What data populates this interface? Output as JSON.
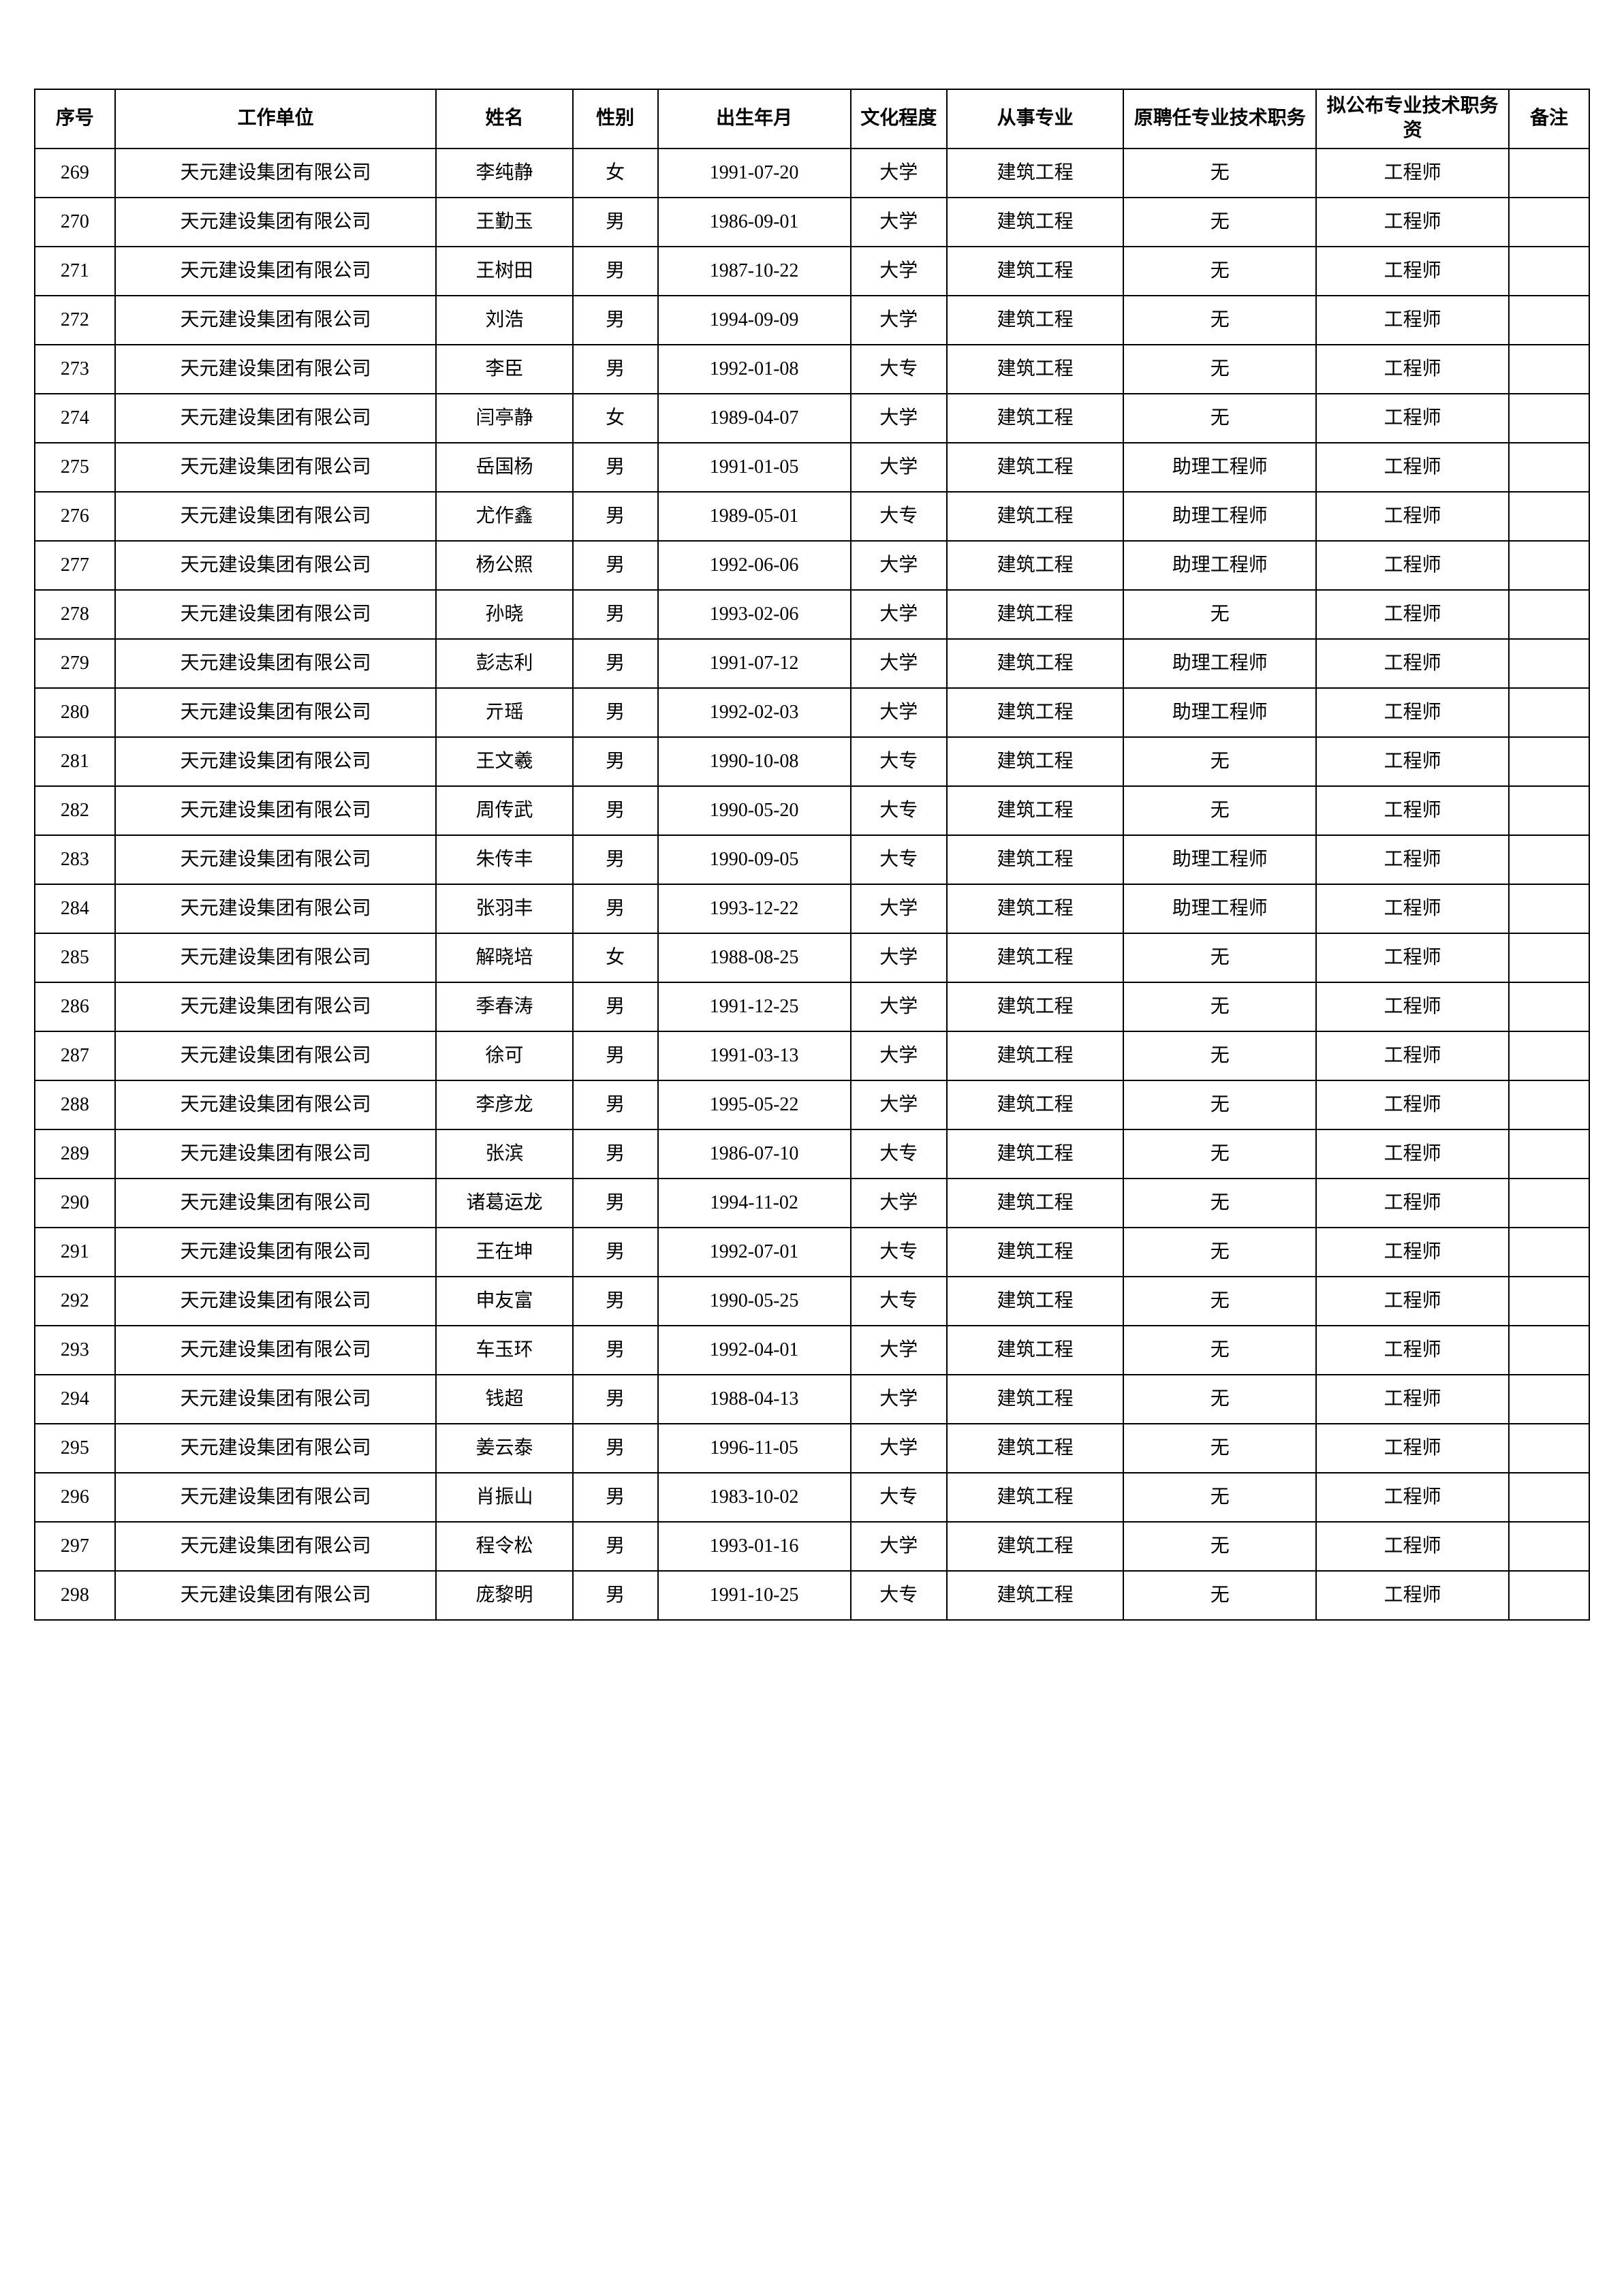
{
  "table": {
    "columns": [
      "序号",
      "工作单位",
      "姓名",
      "性别",
      "出生年月",
      "文化程度",
      "从事专业",
      "原聘任专业技术职务",
      "拟公布专业技术职务资",
      "备注"
    ],
    "rows": [
      [
        "269",
        "天元建设集团有限公司",
        "李纯静",
        "女",
        "1991-07-20",
        "大学",
        "建筑工程",
        "无",
        "工程师",
        ""
      ],
      [
        "270",
        "天元建设集团有限公司",
        "王勤玉",
        "男",
        "1986-09-01",
        "大学",
        "建筑工程",
        "无",
        "工程师",
        ""
      ],
      [
        "271",
        "天元建设集团有限公司",
        "王树田",
        "男",
        "1987-10-22",
        "大学",
        "建筑工程",
        "无",
        "工程师",
        ""
      ],
      [
        "272",
        "天元建设集团有限公司",
        "刘浩",
        "男",
        "1994-09-09",
        "大学",
        "建筑工程",
        "无",
        "工程师",
        ""
      ],
      [
        "273",
        "天元建设集团有限公司",
        "李臣",
        "男",
        "1992-01-08",
        "大专",
        "建筑工程",
        "无",
        "工程师",
        ""
      ],
      [
        "274",
        "天元建设集团有限公司",
        "闫亭静",
        "女",
        "1989-04-07",
        "大学",
        "建筑工程",
        "无",
        "工程师",
        ""
      ],
      [
        "275",
        "天元建设集团有限公司",
        "岳国杨",
        "男",
        "1991-01-05",
        "大学",
        "建筑工程",
        "助理工程师",
        "工程师",
        ""
      ],
      [
        "276",
        "天元建设集团有限公司",
        "尤作鑫",
        "男",
        "1989-05-01",
        "大专",
        "建筑工程",
        "助理工程师",
        "工程师",
        ""
      ],
      [
        "277",
        "天元建设集团有限公司",
        "杨公照",
        "男",
        "1992-06-06",
        "大学",
        "建筑工程",
        "助理工程师",
        "工程师",
        ""
      ],
      [
        "278",
        "天元建设集团有限公司",
        "孙晓",
        "男",
        "1993-02-06",
        "大学",
        "建筑工程",
        "无",
        "工程师",
        ""
      ],
      [
        "279",
        "天元建设集团有限公司",
        "彭志利",
        "男",
        "1991-07-12",
        "大学",
        "建筑工程",
        "助理工程师",
        "工程师",
        ""
      ],
      [
        "280",
        "天元建设集团有限公司",
        "亓瑶",
        "男",
        "1992-02-03",
        "大学",
        "建筑工程",
        "助理工程师",
        "工程师",
        ""
      ],
      [
        "281",
        "天元建设集团有限公司",
        "王文羲",
        "男",
        "1990-10-08",
        "大专",
        "建筑工程",
        "无",
        "工程师",
        ""
      ],
      [
        "282",
        "天元建设集团有限公司",
        "周传武",
        "男",
        "1990-05-20",
        "大专",
        "建筑工程",
        "无",
        "工程师",
        ""
      ],
      [
        "283",
        "天元建设集团有限公司",
        "朱传丰",
        "男",
        "1990-09-05",
        "大专",
        "建筑工程",
        "助理工程师",
        "工程师",
        ""
      ],
      [
        "284",
        "天元建设集团有限公司",
        "张羽丰",
        "男",
        "1993-12-22",
        "大学",
        "建筑工程",
        "助理工程师",
        "工程师",
        ""
      ],
      [
        "285",
        "天元建设集团有限公司",
        "解晓培",
        "女",
        "1988-08-25",
        "大学",
        "建筑工程",
        "无",
        "工程师",
        ""
      ],
      [
        "286",
        "天元建设集团有限公司",
        "季春涛",
        "男",
        "1991-12-25",
        "大学",
        "建筑工程",
        "无",
        "工程师",
        ""
      ],
      [
        "287",
        "天元建设集团有限公司",
        "徐可",
        "男",
        "1991-03-13",
        "大学",
        "建筑工程",
        "无",
        "工程师",
        ""
      ],
      [
        "288",
        "天元建设集团有限公司",
        "李彦龙",
        "男",
        "1995-05-22",
        "大学",
        "建筑工程",
        "无",
        "工程师",
        ""
      ],
      [
        "289",
        "天元建设集团有限公司",
        "张滨",
        "男",
        "1986-07-10",
        "大专",
        "建筑工程",
        "无",
        "工程师",
        ""
      ],
      [
        "290",
        "天元建设集团有限公司",
        "诸葛运龙",
        "男",
        "1994-11-02",
        "大学",
        "建筑工程",
        "无",
        "工程师",
        ""
      ],
      [
        "291",
        "天元建设集团有限公司",
        "王在坤",
        "男",
        "1992-07-01",
        "大专",
        "建筑工程",
        "无",
        "工程师",
        ""
      ],
      [
        "292",
        "天元建设集团有限公司",
        "申友富",
        "男",
        "1990-05-25",
        "大专",
        "建筑工程",
        "无",
        "工程师",
        ""
      ],
      [
        "293",
        "天元建设集团有限公司",
        "车玉环",
        "男",
        "1992-04-01",
        "大学",
        "建筑工程",
        "无",
        "工程师",
        ""
      ],
      [
        "294",
        "天元建设集团有限公司",
        "钱超",
        "男",
        "1988-04-13",
        "大学",
        "建筑工程",
        "无",
        "工程师",
        ""
      ],
      [
        "295",
        "天元建设集团有限公司",
        "姜云泰",
        "男",
        "1996-11-05",
        "大学",
        "建筑工程",
        "无",
        "工程师",
        ""
      ],
      [
        "296",
        "天元建设集团有限公司",
        "肖振山",
        "男",
        "1983-10-02",
        "大专",
        "建筑工程",
        "无",
        "工程师",
        ""
      ],
      [
        "297",
        "天元建设集团有限公司",
        "程令松",
        "男",
        "1993-01-16",
        "大学",
        "建筑工程",
        "无",
        "工程师",
        ""
      ],
      [
        "298",
        "天元建设集团有限公司",
        "庞黎明",
        "男",
        "1991-10-25",
        "大专",
        "建筑工程",
        "无",
        "工程师",
        ""
      ]
    ],
    "border_color": "#000000",
    "background_color": "#ffffff",
    "text_color": "#000000",
    "header_fontsize": 28,
    "cell_fontsize": 28,
    "column_widths_percent": [
      5,
      20,
      8.5,
      5.3,
      12,
      6,
      11,
      12,
      12,
      5
    ]
  }
}
